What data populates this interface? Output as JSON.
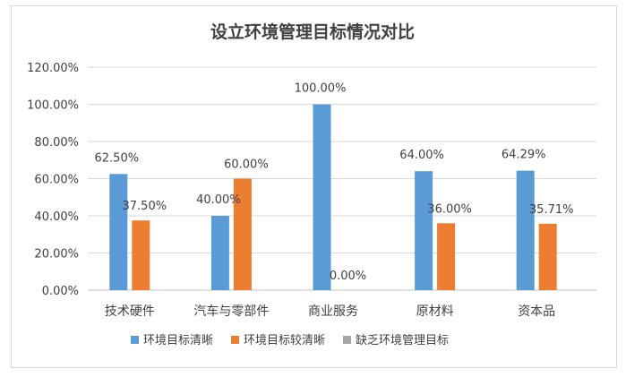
{
  "chart_data": {
    "type": "bar",
    "title": "设立环境管理目标情况对比",
    "categories": [
      "技术硬件",
      "汽车与零部件",
      "商业服务",
      "原材料",
      "资本品"
    ],
    "series": [
      {
        "name": "环境目标清晰",
        "color": "#5b9bd5",
        "values": [
          62.5,
          40.0,
          100.0,
          64.0,
          64.29
        ]
      },
      {
        "name": "环境目标较清晰",
        "color": "#ed7d31",
        "values": [
          37.5,
          60.0,
          0.0,
          36.0,
          35.71
        ]
      },
      {
        "name": "缺乏环境管理目标",
        "color": "#a5a5a5",
        "values": [
          null,
          null,
          null,
          null,
          null
        ]
      }
    ],
    "data_labels": [
      [
        "62.50%",
        "40.00%",
        "100.00%",
        "64.00%",
        "64.29%"
      ],
      [
        "37.50%",
        "60.00%",
        "0.00%",
        "36.00%",
        "35.71%"
      ]
    ],
    "ylim": [
      0,
      120
    ],
    "yticks": [
      "0.00%",
      "20.00%",
      "40.00%",
      "60.00%",
      "80.00%",
      "100.00%",
      "120.00%"
    ],
    "grid": true,
    "legend": "bottom",
    "xlabel": "",
    "ylabel": ""
  }
}
